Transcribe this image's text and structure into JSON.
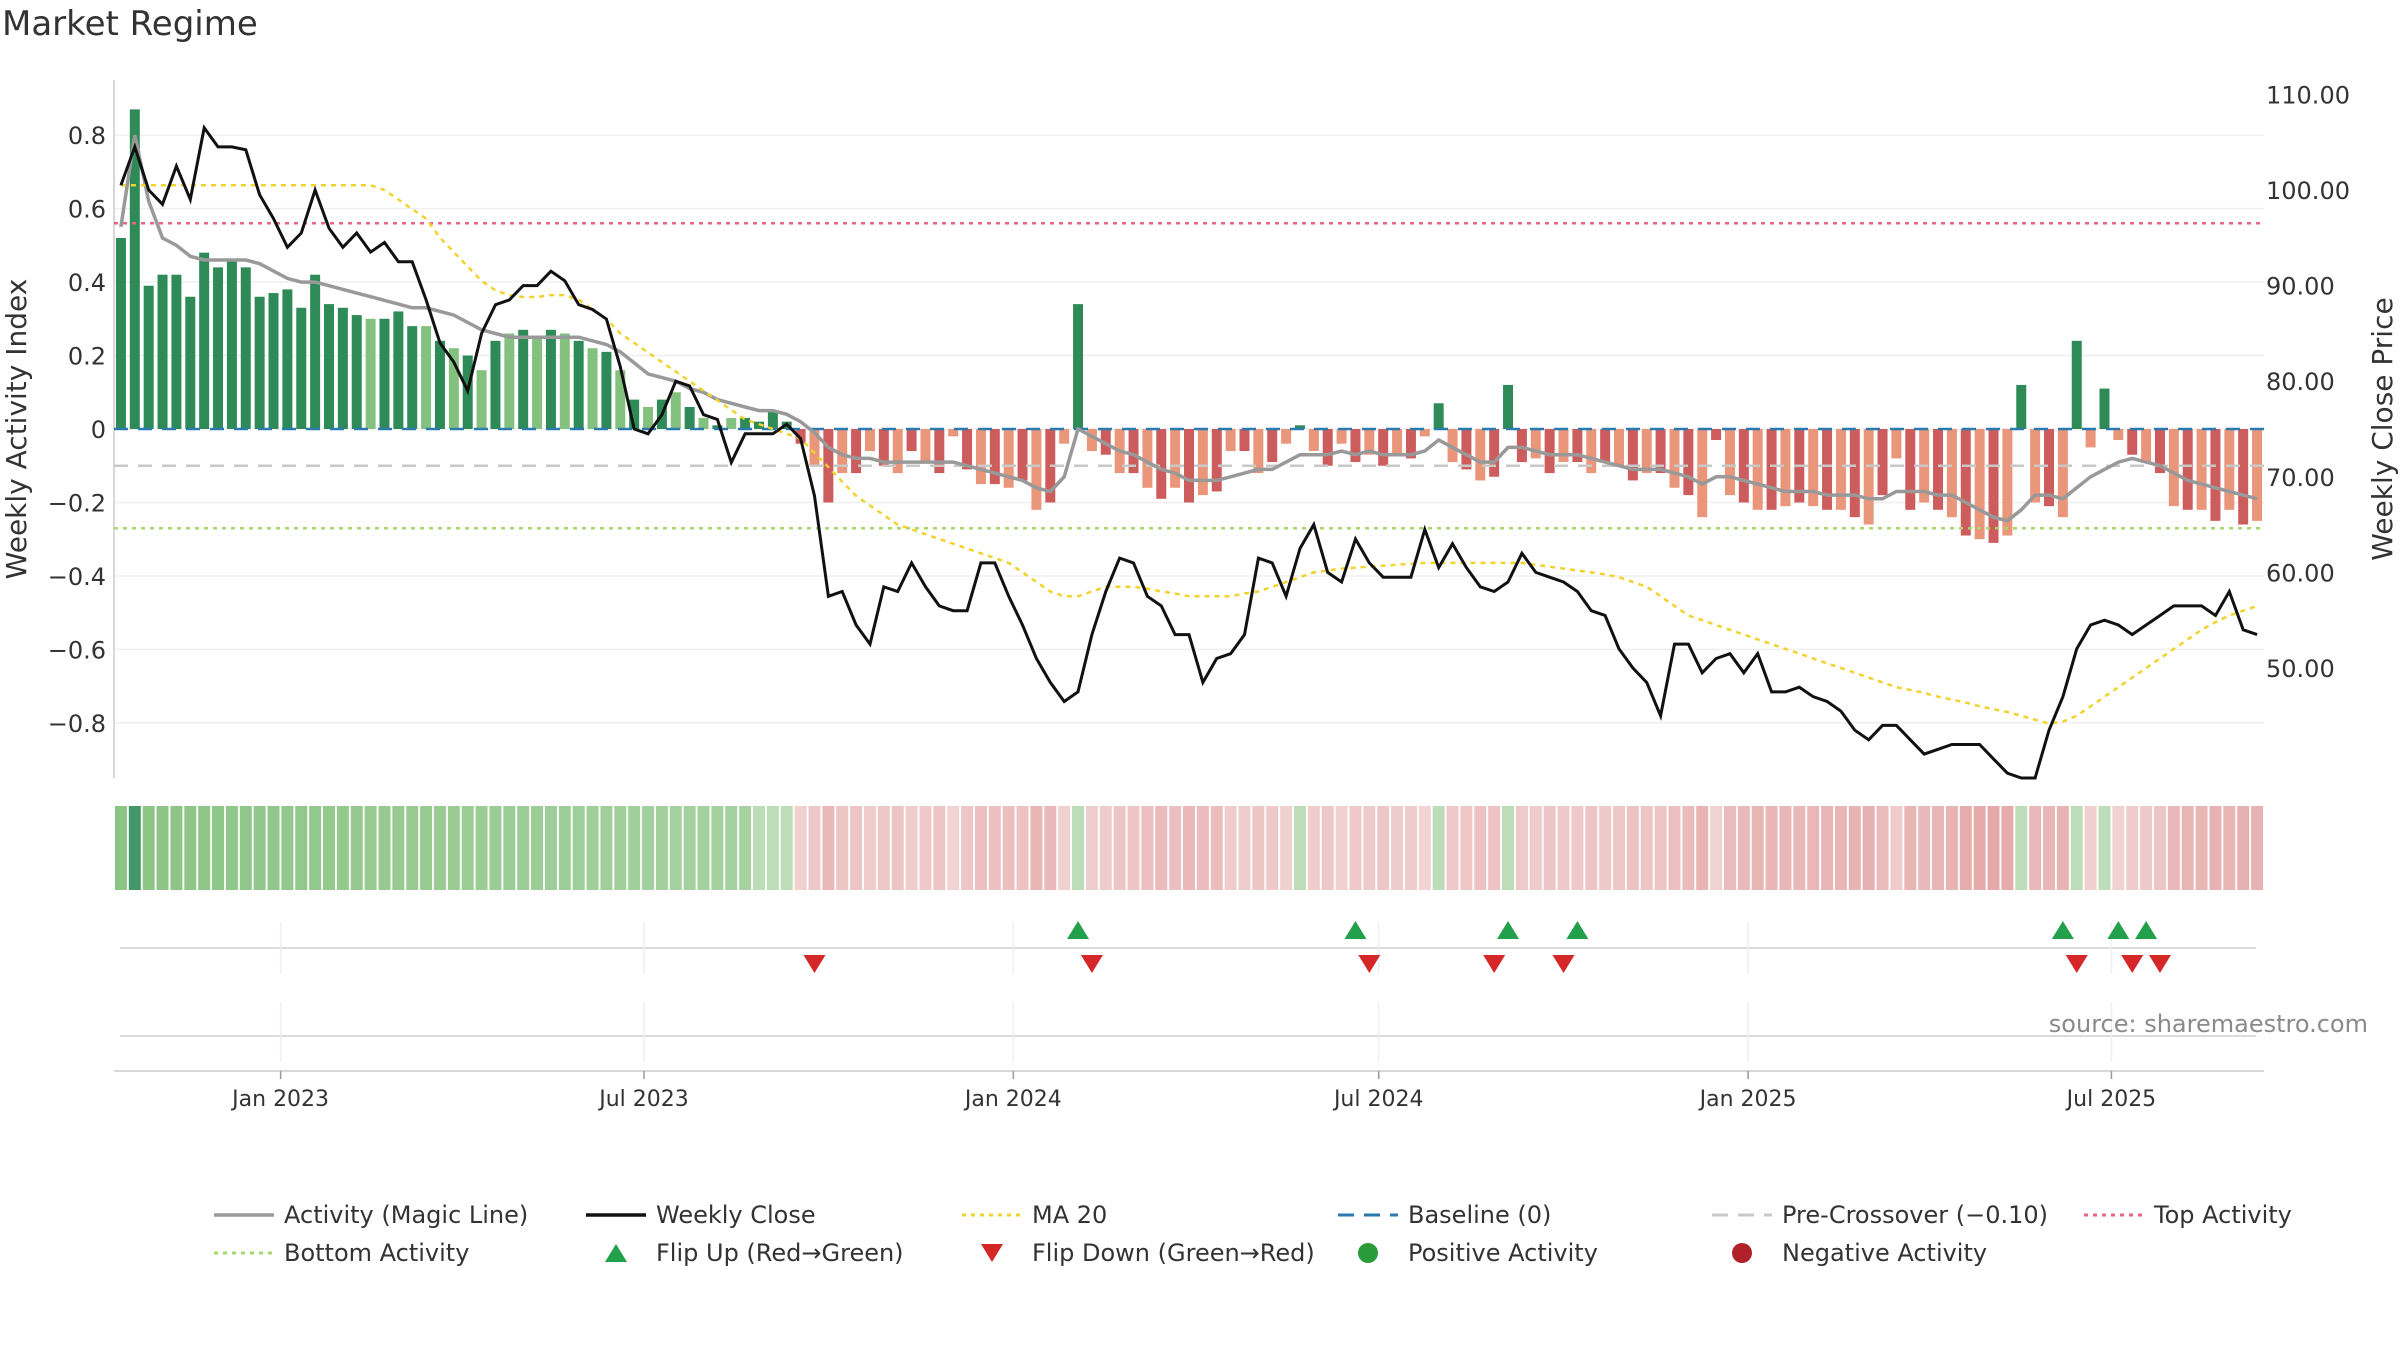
{
  "title": "Market Regime",
  "source": "source: sharemaestro.com",
  "colors": {
    "pos_dark": "#2e8b57",
    "pos_light": "#85c17e",
    "neg_dark": "#cd5c5c",
    "neg_light": "#e9967a",
    "close": "#111111",
    "ma": "#f1d32f",
    "magic": "#999999",
    "baseline": "#2a7ab0",
    "precross": "#c8c8c8",
    "top": "#e86585",
    "bottom": "#a6d96a",
    "flip_up": "#22a04b",
    "flip_down": "#d62728"
  },
  "legend": [
    {
      "key": "magic",
      "label": "Activity (Magic Line)",
      "icon": "solid-line"
    },
    {
      "key": "close",
      "label": "Weekly Close",
      "icon": "solid-line"
    },
    {
      "key": "ma",
      "label": "MA 20",
      "icon": "dotted-line"
    },
    {
      "key": "baseline",
      "label": "Baseline (0)",
      "icon": "dashed-line"
    },
    {
      "key": "precross",
      "label": "Pre-Crossover (−0.10)",
      "icon": "dashed-line"
    },
    {
      "key": "top",
      "label": "Top Activity",
      "icon": "dotted-line"
    },
    {
      "key": "bottom",
      "label": "Bottom Activity",
      "icon": "dotted-line"
    },
    {
      "key": "flip_up",
      "label": "Flip Up (Red→Green)",
      "icon": "triangle-up"
    },
    {
      "key": "flip_down",
      "label": "Flip Down (Green→Red)",
      "icon": "triangle-down"
    },
    {
      "key": "pos",
      "label": "Positive Activity",
      "icon": "circle"
    },
    {
      "key": "neg",
      "label": "Negative Activity",
      "icon": "circle"
    }
  ],
  "chart_data": {
    "type": "bar",
    "ylabel": "Weekly Activity Index",
    "ylabel_right": "Weekly Close Price",
    "ylim": [
      -0.95,
      0.95
    ],
    "ylim_right": [
      38.5,
      111.5
    ],
    "yticks": [
      0.8,
      0.6,
      0.4,
      0.2,
      0,
      -0.2,
      -0.4,
      -0.6,
      -0.8
    ],
    "ytick_labels": [
      "0.8",
      "0.6",
      "0.4",
      "0.2",
      "0",
      "−0.2",
      "−0.4",
      "−0.6",
      "−0.8"
    ],
    "yticks_right": [
      110,
      100,
      90,
      80,
      70,
      60,
      50
    ],
    "ytick_labels_right": [
      "110.00",
      "100.00",
      "90.00",
      "80.00",
      "70.00",
      "60.00",
      "50.00"
    ],
    "date_range": [
      "2022-10-10",
      "2025-09-15"
    ],
    "xticks": [
      "2023-01-01",
      "2023-07-01",
      "2024-01-01",
      "2024-07-01",
      "2025-01-01",
      "2025-07-01"
    ],
    "xtick_labels": [
      "Jan 2023",
      "Jul 2023",
      "Jan 2024",
      "Jul 2024",
      "Jan 2025",
      "Jul 2025"
    ],
    "reference_lines": {
      "baseline": 0,
      "pre_crossover": -0.1,
      "top_activity": 0.56,
      "bottom_activity": -0.27
    },
    "activity_index": [
      0.52,
      0.87,
      0.39,
      0.42,
      0.42,
      0.36,
      0.48,
      0.44,
      0.46,
      0.44,
      0.36,
      0.37,
      0.38,
      0.33,
      0.42,
      0.34,
      0.33,
      0.31,
      0.3,
      0.3,
      0.32,
      0.28,
      0.28,
      0.24,
      0.22,
      0.2,
      0.16,
      0.24,
      0.26,
      0.27,
      0.25,
      0.27,
      0.26,
      0.24,
      0.22,
      0.21,
      0.16,
      0.08,
      0.06,
      0.08,
      0.1,
      0.06,
      0.03,
      0.01,
      0.03,
      0.03,
      0.02,
      0.05,
      0.02,
      -0.04,
      -0.1,
      -0.2,
      -0.12,
      -0.12,
      -0.06,
      -0.1,
      -0.12,
      -0.06,
      -0.09,
      -0.12,
      -0.02,
      -0.11,
      -0.15,
      -0.15,
      -0.16,
      -0.14,
      -0.22,
      -0.2,
      -0.04,
      0.34,
      -0.06,
      -0.07,
      -0.12,
      -0.12,
      -0.16,
      -0.19,
      -0.16,
      -0.2,
      -0.18,
      -0.17,
      -0.06,
      -0.06,
      -0.12,
      -0.09,
      -0.04,
      0.01,
      -0.06,
      -0.1,
      -0.04,
      -0.09,
      -0.07,
      -0.1,
      -0.07,
      -0.08,
      -0.02,
      0.07,
      -0.09,
      -0.11,
      -0.14,
      -0.13,
      0.12,
      -0.09,
      -0.08,
      -0.12,
      -0.09,
      -0.09,
      -0.12,
      -0.09,
      -0.1,
      -0.14,
      -0.12,
      -0.12,
      -0.16,
      -0.18,
      -0.24,
      -0.03,
      -0.18,
      -0.2,
      -0.22,
      -0.22,
      -0.21,
      -0.2,
      -0.21,
      -0.22,
      -0.22,
      -0.24,
      -0.26,
      -0.18,
      -0.08,
      -0.22,
      -0.2,
      -0.22,
      -0.24,
      -0.29,
      -0.3,
      -0.31,
      -0.29,
      0.12,
      -0.2,
      -0.21,
      -0.24,
      0.24,
      -0.05,
      0.11,
      -0.03,
      -0.07,
      -0.09,
      -0.12,
      -0.21,
      -0.22,
      -0.22,
      -0.25,
      -0.22,
      -0.26,
      -0.25
    ],
    "weekly_close": [
      100.5,
      104.5,
      100.0,
      98.5,
      102.5,
      99.0,
      106.5,
      104.5,
      104.5,
      104.2,
      99.5,
      97.0,
      94.0,
      95.5,
      100.0,
      96.0,
      94.0,
      95.5,
      93.5,
      94.5,
      92.5,
      92.5,
      88.5,
      84.0,
      82.0,
      79.0,
      85.0,
      88.0,
      88.5,
      90.0,
      90.0,
      91.5,
      90.5,
      88.0,
      87.5,
      86.5,
      81.5,
      75.0,
      74.5,
      76.5,
      80.0,
      79.5,
      76.5,
      76.0,
      71.5,
      74.5,
      74.5,
      74.5,
      75.5,
      74.0,
      68.0,
      57.5,
      58.0,
      54.5,
      52.5,
      58.5,
      58.0,
      61.0,
      58.5,
      56.5,
      56.0,
      56.0,
      61.0,
      61.0,
      57.5,
      54.5,
      51.0,
      48.5,
      46.5,
      47.5,
      53.5,
      58.0,
      61.5,
      61.0,
      57.5,
      56.5,
      53.5,
      53.5,
      48.5,
      51.0,
      51.5,
      53.5,
      61.5,
      61.0,
      57.5,
      62.5,
      65.0,
      60.0,
      59.0,
      63.5,
      61.0,
      59.5,
      59.5,
      59.5,
      64.5,
      60.5,
      63.0,
      60.5,
      58.5,
      58.0,
      59.0,
      62.0,
      60.0,
      59.5,
      59.0,
      58.0,
      56.0,
      55.5,
      52.0,
      50.0,
      48.5,
      45.0,
      52.5,
      52.5,
      49.5,
      51.0,
      51.5,
      49.5,
      51.5,
      47.5,
      47.5,
      48.0,
      47.0,
      46.5,
      45.5,
      43.5,
      42.5,
      44.0,
      44.0,
      42.5,
      41.0,
      41.5,
      42.0,
      42.0,
      42.0,
      40.5,
      39.0,
      38.5,
      38.5,
      43.5,
      47.0,
      52.0,
      54.5,
      55.0,
      54.5,
      53.5,
      54.5,
      55.5,
      56.5,
      56.5,
      56.5,
      55.5,
      58.0,
      54.0,
      53.5
    ],
    "ma20": [
      100.5,
      100.5,
      100.5,
      100.5,
      100.5,
      100.5,
      100.5,
      100.5,
      100.5,
      100.5,
      100.5,
      100.5,
      100.5,
      100.5,
      100.5,
      100.5,
      100.5,
      100.5,
      100.5,
      100.0,
      99.0,
      98.0,
      97.0,
      95.0,
      93.5,
      92.0,
      90.5,
      89.5,
      89.0,
      88.8,
      88.8,
      89.0,
      89.0,
      88.5,
      87.5,
      86.5,
      85.0,
      84.0,
      83.0,
      82.0,
      81.0,
      80.0,
      79.0,
      78.0,
      77.0,
      76.0,
      75.5,
      75.0,
      74.5,
      74.0,
      72.5,
      71.0,
      69.5,
      68.0,
      67.0,
      66.0,
      65.0,
      64.5,
      64.0,
      63.5,
      63.0,
      62.5,
      62.0,
      61.5,
      61.0,
      60.0,
      59.0,
      58.0,
      57.5,
      57.5,
      58.0,
      58.5,
      58.5,
      58.5,
      58.3,
      58.0,
      57.8,
      57.5,
      57.5,
      57.5,
      57.5,
      57.8,
      58.0,
      58.5,
      59.0,
      59.5,
      60.0,
      60.2,
      60.4,
      60.5,
      60.6,
      60.7,
      60.8,
      60.9,
      61.0,
      61.0,
      61.0,
      61.0,
      61.0,
      61.0,
      61.0,
      61.0,
      60.8,
      60.6,
      60.4,
      60.2,
      60.0,
      59.8,
      59.5,
      59.0,
      58.5,
      57.5,
      56.5,
      55.5,
      55.0,
      54.5,
      54.0,
      53.5,
      53.0,
      52.5,
      52.0,
      51.5,
      51.0,
      50.5,
      50.0,
      49.5,
      49.0,
      48.5,
      48.0,
      47.7,
      47.4,
      47.0,
      46.7,
      46.4,
      46.0,
      45.7,
      45.4,
      45.0,
      44.6,
      44.2,
      44.4,
      45.0,
      46.0,
      47.0,
      48.0,
      49.0,
      50.0,
      51.0,
      52.0,
      53.0,
      54.0,
      54.8,
      55.5,
      56.0,
      56.5
    ],
    "magic_line": [
      0.55,
      0.8,
      0.62,
      0.52,
      0.5,
      0.47,
      0.46,
      0.46,
      0.46,
      0.46,
      0.45,
      0.43,
      0.41,
      0.4,
      0.4,
      0.39,
      0.38,
      0.37,
      0.36,
      0.35,
      0.34,
      0.33,
      0.33,
      0.32,
      0.31,
      0.29,
      0.27,
      0.26,
      0.25,
      0.25,
      0.25,
      0.25,
      0.25,
      0.25,
      0.24,
      0.23,
      0.21,
      0.18,
      0.15,
      0.14,
      0.13,
      0.11,
      0.1,
      0.08,
      0.07,
      0.06,
      0.05,
      0.05,
      0.04,
      0.02,
      -0.01,
      -0.05,
      -0.07,
      -0.08,
      -0.08,
      -0.09,
      -0.09,
      -0.09,
      -0.09,
      -0.09,
      -0.09,
      -0.1,
      -0.11,
      -0.12,
      -0.13,
      -0.14,
      -0.16,
      -0.17,
      -0.13,
      0.0,
      -0.02,
      -0.04,
      -0.06,
      -0.07,
      -0.09,
      -0.11,
      -0.12,
      -0.14,
      -0.14,
      -0.14,
      -0.13,
      -0.12,
      -0.11,
      -0.11,
      -0.09,
      -0.07,
      -0.07,
      -0.07,
      -0.06,
      -0.07,
      -0.06,
      -0.07,
      -0.07,
      -0.07,
      -0.06,
      -0.03,
      -0.05,
      -0.07,
      -0.09,
      -0.09,
      -0.05,
      -0.05,
      -0.06,
      -0.07,
      -0.07,
      -0.07,
      -0.08,
      -0.09,
      -0.1,
      -0.11,
      -0.11,
      -0.11,
      -0.12,
      -0.13,
      -0.15,
      -0.13,
      -0.13,
      -0.14,
      -0.15,
      -0.16,
      -0.17,
      -0.17,
      -0.17,
      -0.18,
      -0.18,
      -0.18,
      -0.19,
      -0.19,
      -0.17,
      -0.17,
      -0.17,
      -0.18,
      -0.18,
      -0.2,
      -0.22,
      -0.24,
      -0.25,
      -0.22,
      -0.18,
      -0.18,
      -0.19,
      -0.16,
      -0.13,
      -0.11,
      -0.09,
      -0.08,
      -0.09,
      -0.1,
      -0.12,
      -0.14,
      -0.15,
      -0.16,
      -0.17,
      -0.18,
      -0.19
    ],
    "flip_up_weeks": [
      69,
      89,
      100,
      105,
      140,
      144,
      146
    ],
    "flip_down_weeks": [
      50,
      70,
      90,
      99,
      104,
      141,
      145,
      147
    ]
  }
}
